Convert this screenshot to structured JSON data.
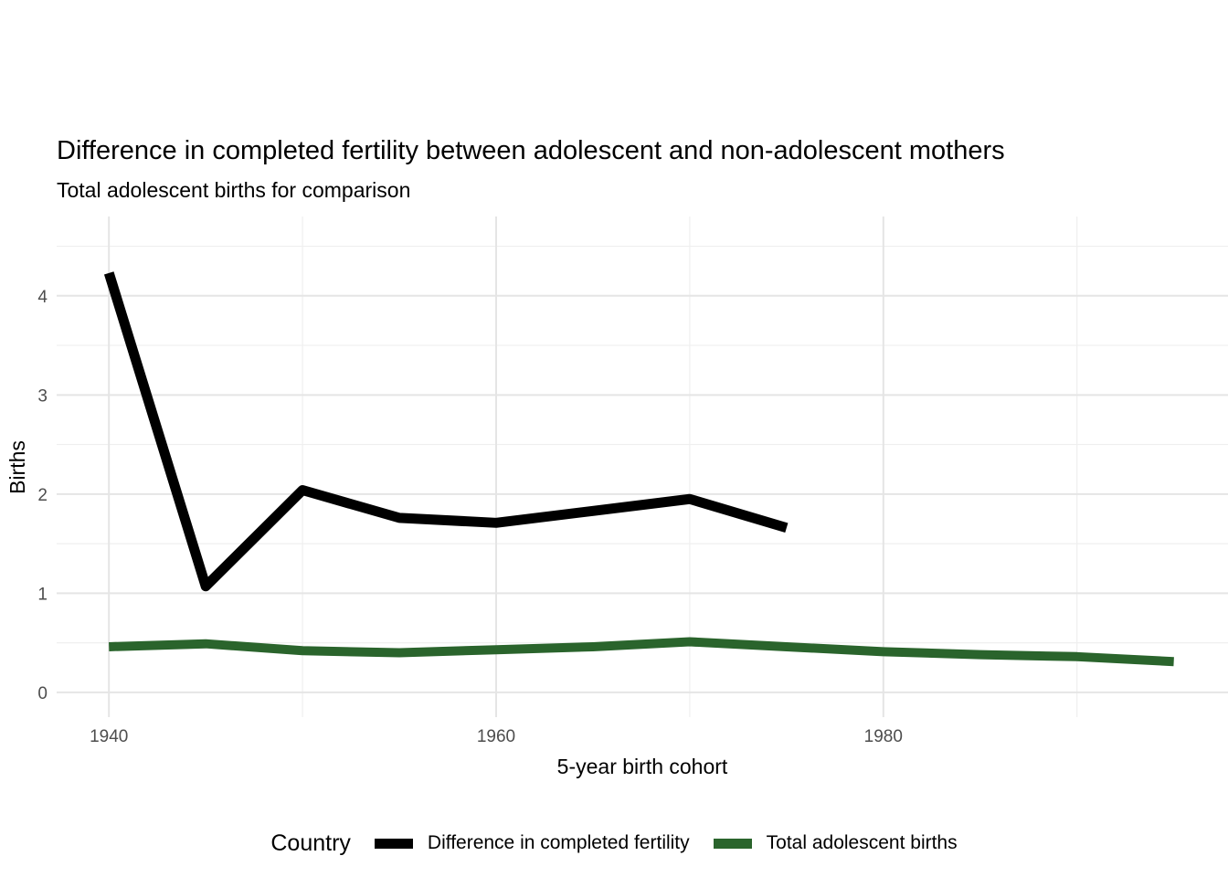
{
  "chart_data": {
    "type": "line",
    "title": "Difference in completed fertility between adolescent and non-adolescent mothers",
    "subtitle": "Total adolescent births for comparison",
    "xlabel": "5-year birth cohort",
    "ylabel": "Births",
    "legend_title": "Country",
    "legend_position": "bottom",
    "grid": true,
    "xlim": [
      1937.3,
      1997.8
    ],
    "ylim": [
      -0.25,
      4.8
    ],
    "x_ticks": [
      1940,
      1960,
      1980
    ],
    "x_minor_gridlines": [
      1950,
      1970,
      1990
    ],
    "y_ticks": [
      0,
      1,
      2,
      3,
      4
    ],
    "y_minor_gridlines": [
      0.5,
      1.5,
      2.5,
      3.5,
      4.5
    ],
    "series": [
      {
        "name": "Difference in completed fertility",
        "color": "#000000",
        "x": [
          1940,
          1945,
          1950,
          1955,
          1960,
          1965,
          1970,
          1975
        ],
        "values": [
          4.23,
          1.07,
          2.04,
          1.76,
          1.71,
          1.83,
          1.95,
          1.66
        ]
      },
      {
        "name": "Total adolescent births",
        "color": "#2a642c",
        "x": [
          1940,
          1945,
          1950,
          1955,
          1960,
          1965,
          1970,
          1975,
          1980,
          1985,
          1990,
          1995
        ],
        "values": [
          0.46,
          0.49,
          0.42,
          0.4,
          0.43,
          0.46,
          0.51,
          0.46,
          0.41,
          0.38,
          0.36,
          0.31
        ]
      }
    ],
    "style": {
      "tick_label_color": "#4d4d4d",
      "major_grid_color": "#e5e5e5",
      "minor_grid_color": "#efefef"
    }
  }
}
